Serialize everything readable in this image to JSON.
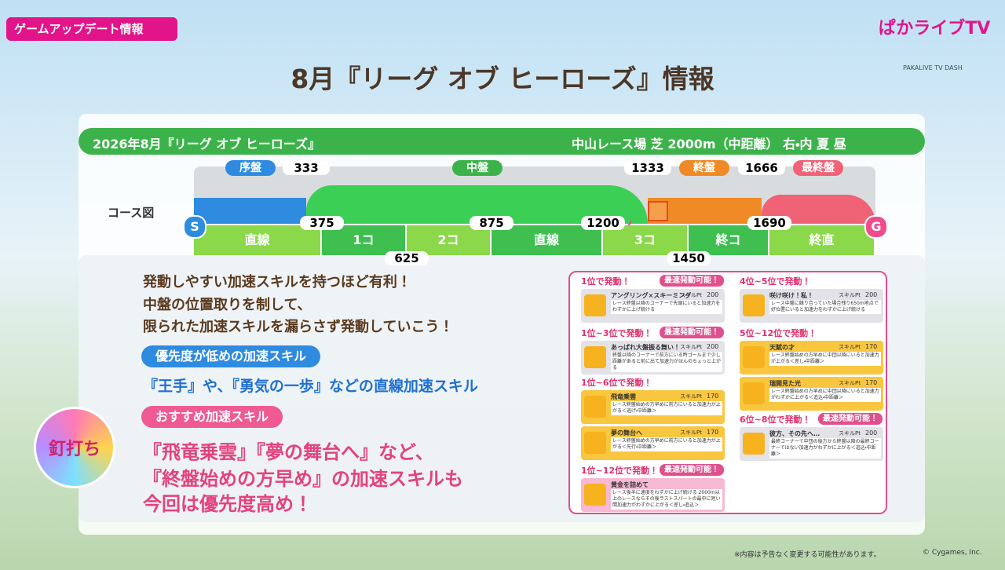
{
  "header": {
    "tag": "ゲームアップデート情報",
    "title": "8月『リーグ オブ ヒーローズ』情報",
    "logo": "ぱかライブTV",
    "logo_sub": "PAKALIVE TV DASH"
  },
  "race": {
    "name": "2026年8月『リーグ オブ ヒーローズ』",
    "info": "中山レース場 芝 2000m（中距離） 右・内 夏 昼"
  },
  "course": {
    "label": "コース図",
    "start": "S",
    "goal": "G",
    "phases": [
      "序盤",
      "中盤",
      "終盤",
      "最終盤"
    ],
    "phase_marks": [
      "333",
      "1333",
      "1666"
    ],
    "segments": [
      "直線",
      "1コ",
      "2コ",
      "直線",
      "3コ",
      "終コ",
      "終直"
    ],
    "segment_marks": [
      "375",
      "625",
      "875",
      "1200",
      "1450",
      "1690"
    ]
  },
  "advice": {
    "intro": [
      "発動しやすい加速スキルを持つほど有利！",
      "中盤の位置取りを制して、",
      "限られた加速スキルを漏らさず発動していこう！"
    ],
    "low_heading": "優先度が低めの加速スキル",
    "low_text": "『王手』や、『勇気の一歩』などの直線加速スキル",
    "rec_heading": "おすすめ加速スキル",
    "rec_lines": [
      "『飛竜乗雲』『夢の舞台へ』など、",
      "『終盤始めの方早め』の加速スキルも",
      "今回は優先度高め！"
    ],
    "badge": "釘打ち"
  },
  "skills": {
    "pt_label": "スキルPt",
    "groups": [
      {
        "header": "1位で発動！",
        "badge": "最速発動可能！",
        "cards": [
          {
            "name": "アングリング×スキーミング",
            "pt": "200",
            "desc": "レース終盤以降のコーナーで先頭にいると加速力をわずかに上げ続ける"
          }
        ]
      },
      {
        "header": "1位~3位で発動！",
        "badge": "最速発動可能！",
        "cards": [
          {
            "name": "あっぱれ大盤振る舞い！",
            "pt": "200",
            "desc": "終盤以降のコーナーで前方にいる時ゴールまで少し距離があると前に出て加速力がほんのちょっと上がる"
          }
        ]
      },
      {
        "header": "1位~6位で発動！",
        "cards": [
          {
            "name": "飛竜乗雲",
            "pt": "170",
            "desc": "レース終盤始めの方早めに前方にいると加速力が上がる＜逃げ・中距離＞"
          },
          {
            "name": "夢の舞台へ",
            "pt": "170",
            "desc": "レース終盤始めの方早めに前方にいると加速力が上がる＜先行・中距離＞"
          }
        ]
      },
      {
        "header": "1位~12位で発動！",
        "badge": "最速発動可能！",
        "cards": [
          {
            "name": "黄金を詰めて",
            "desc": "レース後半に速度をわずかに上げ続ける 2000m以上のレースならその後ラストスパートの最中に短い間加速力がわずかに上がる＜差し・追込＞"
          }
        ]
      },
      {
        "header": "4位~5位で発動！",
        "cards": [
          {
            "name": "咲け咲け！私！",
            "pt": "200",
            "desc": "レース中盤に競り合っていた場合残り650m地点で好位置にいると加速力をわずかに上げ続ける"
          }
        ]
      },
      {
        "header": "5位~12位で発動！",
        "cards": [
          {
            "name": "天賦の才",
            "pt": "170",
            "desc": "レース終盤始めの方早めに中団以降にいると加速力が上がる＜差し・中距離＞"
          },
          {
            "name": "瑞開見た光",
            "pt": "170",
            "desc": "レース終盤始めの方早めに中団以降にいると加速力がわずかに上がる＜追込・中距離＞"
          }
        ]
      },
      {
        "header": "6位~8位で発動！",
        "badge": "最速発動可能！",
        "cards": [
          {
            "name": "彼方、その先へ…",
            "pt": "200",
            "desc": "最終コーナーで中団の後方から終盤以降の最終コーナーではない加速力がわずかに上がる＜追込・中距離＞"
          }
        ]
      }
    ]
  },
  "footer": {
    "note": "※内容は予告なく変更する可能性があります。",
    "copyright": "© Cygames, Inc."
  }
}
